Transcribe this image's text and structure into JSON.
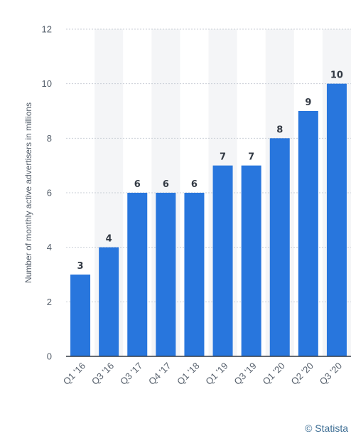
{
  "chart_data": {
    "type": "bar",
    "categories": [
      "Q1 '16",
      "Q3 '16",
      "Q3 '17",
      "Q4 '17",
      "Q1 '18",
      "Q1 '19",
      "Q3 '19",
      "Q1 '20",
      "Q2 '20",
      "Q3 '20"
    ],
    "values": [
      3,
      4,
      6,
      6,
      6,
      7,
      7,
      8,
      9,
      10
    ],
    "data_labels": [
      "3",
      "4",
      "6",
      "6",
      "6",
      "7",
      "7",
      "8",
      "9",
      "10"
    ],
    "ylabel": "Number of monthly active advertisers in millions",
    "ylim": [
      0,
      12
    ],
    "yticks": [
      "0",
      "2",
      "4",
      "6",
      "8",
      "10",
      "12"
    ],
    "grid": true,
    "bar_color": "#2876dd",
    "alt_column_shading": "#f4f5f7"
  },
  "credit": "© Statista"
}
